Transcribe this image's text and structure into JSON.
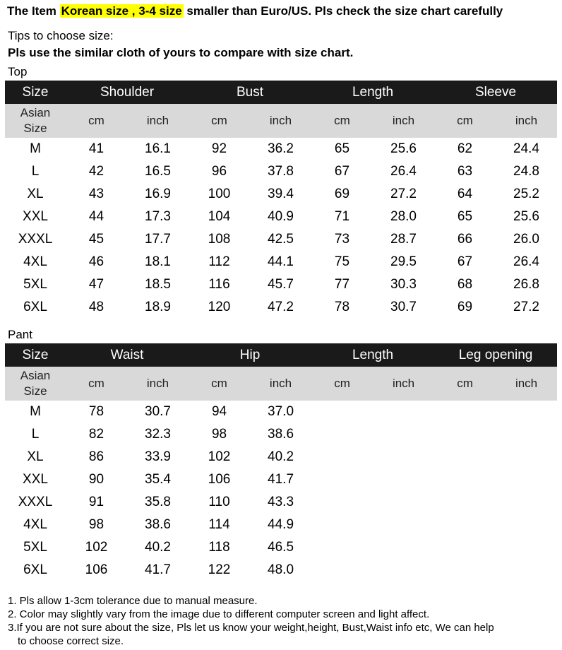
{
  "headline": {
    "prefix": "The Item",
    "highlight": "Korean size , 3-4 size",
    "suffix": "smaller than Euro/US. Pls check the size chart carefully"
  },
  "tips": "Tips to choose size:",
  "tips_bold": "Pls use the similar cloth of yours to compare with size chart.",
  "top": {
    "label": "Top",
    "headers": [
      "Size",
      "Shoulder",
      "Bust",
      "Length",
      "Sleeve"
    ],
    "sub": {
      "asian_line1": "Asian",
      "asian_line2": "Size",
      "units": [
        "cm",
        "inch",
        "cm",
        "inch",
        "cm",
        "inch",
        "cm",
        "inch"
      ]
    },
    "rows": [
      [
        "M",
        "41",
        "16.1",
        "92",
        "36.2",
        "65",
        "25.6",
        "62",
        "24.4"
      ],
      [
        "L",
        "42",
        "16.5",
        "96",
        "37.8",
        "67",
        "26.4",
        "63",
        "24.8"
      ],
      [
        "XL",
        "43",
        "16.9",
        "100",
        "39.4",
        "69",
        "27.2",
        "64",
        "25.2"
      ],
      [
        "XXL",
        "44",
        "17.3",
        "104",
        "40.9",
        "71",
        "28.0",
        "65",
        "25.6"
      ],
      [
        "XXXL",
        "45",
        "17.7",
        "108",
        "42.5",
        "73",
        "28.7",
        "66",
        "26.0"
      ],
      [
        "4XL",
        "46",
        "18.1",
        "112",
        "44.1",
        "75",
        "29.5",
        "67",
        "26.4"
      ],
      [
        "5XL",
        "47",
        "18.5",
        "116",
        "45.7",
        "77",
        "30.3",
        "68",
        "26.8"
      ],
      [
        "6XL",
        "48",
        "18.9",
        "120",
        "47.2",
        "78",
        "30.7",
        "69",
        "27.2"
      ]
    ]
  },
  "pant": {
    "label": "Pant",
    "headers": [
      "Size",
      "Waist",
      "Hip",
      "Length",
      "Leg opening"
    ],
    "sub": {
      "asian_line1": "Asian",
      "asian_line2": "Size",
      "units": [
        "cm",
        "inch",
        "cm",
        "inch",
        "cm",
        "inch",
        "cm",
        "inch"
      ]
    },
    "rows": [
      [
        "M",
        "78",
        "30.7",
        "94",
        "37.0",
        "",
        "",
        "",
        ""
      ],
      [
        "L",
        "82",
        "32.3",
        "98",
        "38.6",
        "",
        "",
        "",
        ""
      ],
      [
        "XL",
        "86",
        "33.9",
        "102",
        "40.2",
        "",
        "",
        "",
        ""
      ],
      [
        "XXL",
        "90",
        "35.4",
        "106",
        "41.7",
        "",
        "",
        "",
        ""
      ],
      [
        "XXXL",
        "91",
        "35.8",
        "110",
        "43.3",
        "",
        "",
        "",
        ""
      ],
      [
        "4XL",
        "98",
        "38.6",
        "114",
        "44.9",
        "",
        "",
        "",
        ""
      ],
      [
        "5XL",
        "102",
        "40.2",
        "118",
        "46.5",
        "",
        "",
        "",
        ""
      ],
      [
        "6XL",
        "106",
        "41.7",
        "122",
        "48.0",
        "",
        "",
        "",
        ""
      ]
    ]
  },
  "notes": [
    "1. Pls allow 1-3cm tolerance due to manual measure.",
    "2. Color may slightly vary from the image due to different computer screen and light affect.",
    "3.If you are not sure about the size, Pls let us know your weight,height, Bust,Waist info etc, We can help",
    "to choose correct size."
  ]
}
